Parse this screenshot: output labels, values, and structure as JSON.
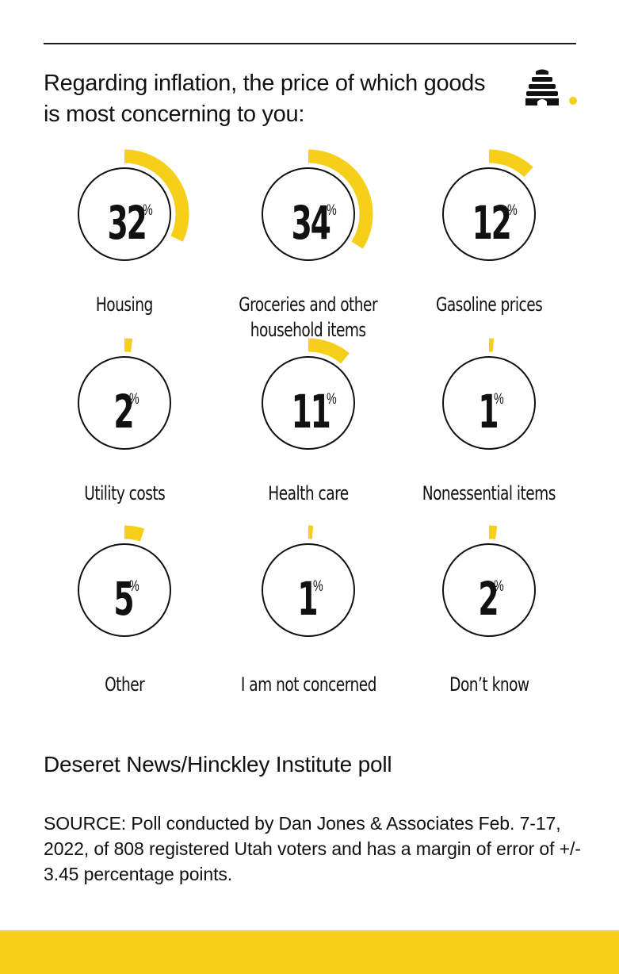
{
  "title": "Regarding inflation, the price of which goods is most concerning to you:",
  "colors": {
    "accent": "#f6cf1b",
    "ring": "#111111",
    "band": "#f6cf1b"
  },
  "chart_data": {
    "type": "donut",
    "title": "Regarding inflation, the price of which goods is most concerning to you:",
    "unit": "%",
    "categories": [
      "Housing",
      "Groceries and other household items",
      "Gasoline prices",
      "Utility costs",
      "Health care",
      "Nonessential items",
      "Other",
      "I am not concerned",
      "Don’t know"
    ],
    "values": [
      32,
      34,
      12,
      2,
      11,
      1,
      5,
      1,
      2
    ],
    "items": [
      {
        "label": "Housing",
        "value": 32
      },
      {
        "label": "Groceries and other household items",
        "value": 34
      },
      {
        "label": "Gasoline prices",
        "value": 12
      },
      {
        "label": "Utility costs",
        "value": 2
      },
      {
        "label": "Health care",
        "value": 11
      },
      {
        "label": "Nonessential items",
        "value": 1
      },
      {
        "label": "Other",
        "value": 5
      },
      {
        "label": "I am not concerned",
        "value": 1
      },
      {
        "label": "Don’t know",
        "value": 2
      }
    ]
  },
  "poll_name": "Deseret News/Hinckley Institute poll",
  "source": "SOURCE: Poll conducted by Dan Jones & Associates Feb. 7-17, 2022, of 808 registered Utah voters and has a margin of error of +/- 3.45 percentage points.",
  "logo": {
    "icon": "beehive-icon"
  }
}
